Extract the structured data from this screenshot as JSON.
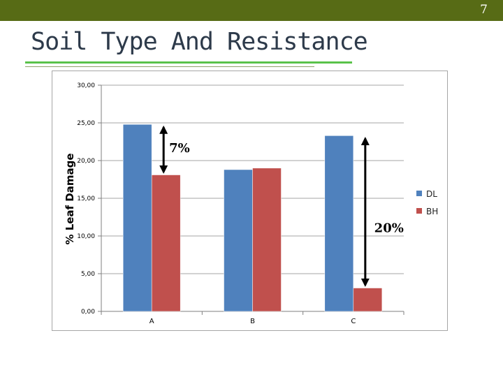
{
  "slide": {
    "number": "7",
    "title": "Soil Type And Resistance",
    "colors": {
      "top_bar": "#576b15",
      "rule": "#5ac24a"
    }
  },
  "chart_data": {
    "type": "bar",
    "ylabel": "% Leaf Damage",
    "ylim": [
      0,
      30
    ],
    "yticks": [
      "0,00",
      "5,00",
      "10,00",
      "15,00",
      "20,00",
      "25,00",
      "30,00"
    ],
    "categories": [
      "A",
      "B",
      "C"
    ],
    "series": [
      {
        "name": "DL",
        "color": "#4f81bd",
        "values": [
          24.8,
          18.8,
          23.3
        ]
      },
      {
        "name": "BH",
        "color": "#c0504d",
        "values": [
          18.1,
          19.0,
          3.1
        ]
      }
    ],
    "legend": "right",
    "grid": "horizontal",
    "annotations": [
      {
        "text": "7%",
        "category": "A"
      },
      {
        "text": "20%",
        "category": "C"
      }
    ]
  }
}
